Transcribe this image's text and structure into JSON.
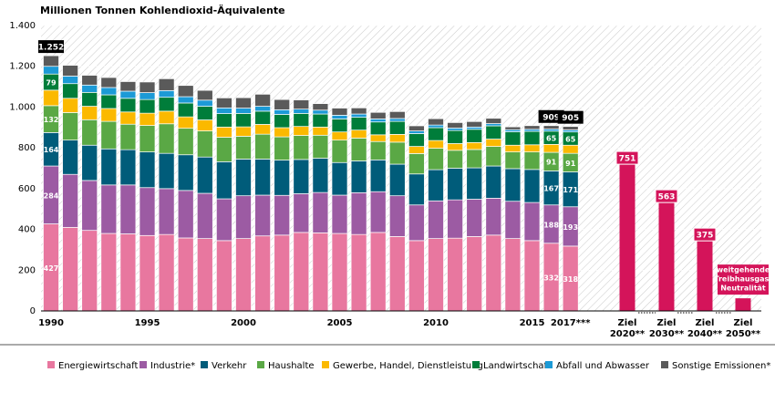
{
  "chart_data": {
    "type": "stacked-bar",
    "title": "Millionen Tonnen Kohlendioxid-Äquivalente",
    "ylim": [
      0,
      1400
    ],
    "yticks": [
      0,
      200,
      400,
      600,
      800,
      {
        "value": 1000,
        "label": "1.000"
      },
      {
        "value": 1200,
        "label": "1.200"
      },
      {
        "value": 1400,
        "label": "1.400"
      }
    ],
    "categories": [
      "1990",
      null,
      null,
      null,
      null,
      "1995",
      null,
      null,
      null,
      null,
      "2000",
      null,
      null,
      null,
      null,
      "2005",
      null,
      null,
      null,
      null,
      "2010",
      null,
      null,
      null,
      null,
      "2015",
      null,
      "2017***"
    ],
    "data_labels": [
      0,
      26,
      27
    ],
    "series": [
      {
        "name": "Energiewirtschaft",
        "color": "#e8779f",
        "labels": true,
        "values": [
          427,
          410,
          395,
          380,
          378,
          370,
          375,
          358,
          355,
          345,
          355,
          368,
          372,
          385,
          383,
          380,
          375,
          385,
          365,
          345,
          355,
          357,
          365,
          372,
          355,
          345,
          332,
          318
        ]
      },
      {
        "name": "Industrie*",
        "color": "#9c5ba3",
        "labels": true,
        "values": [
          284,
          260,
          245,
          238,
          240,
          235,
          225,
          233,
          222,
          205,
          210,
          200,
          195,
          190,
          198,
          188,
          205,
          200,
          200,
          175,
          185,
          188,
          183,
          181,
          183,
          187,
          188,
          193
        ]
      },
      {
        "name": "Verkehr",
        "color": "#005c7a",
        "labels": true,
        "values": [
          164,
          168,
          173,
          177,
          173,
          175,
          173,
          175,
          178,
          182,
          180,
          177,
          173,
          168,
          168,
          160,
          156,
          156,
          155,
          152,
          153,
          155,
          154,
          158,
          160,
          162,
          167,
          171
        ]
      },
      {
        "name": "Haushalte",
        "color": "#5aa845",
        "labels": true,
        "values": [
          132,
          135,
          125,
          135,
          125,
          130,
          145,
          130,
          128,
          120,
          112,
          122,
          114,
          118,
          113,
          110,
          112,
          90,
          108,
          100,
          105,
          88,
          90,
          96,
          82,
          86,
          91,
          91
        ]
      },
      {
        "name": "Gewerbe, Handel, Dienstleistung",
        "color": "#fbb900",
        "labels": false,
        "values": [
          76,
          70,
          66,
          63,
          60,
          60,
          62,
          56,
          54,
          50,
          46,
          48,
          45,
          44,
          40,
          40,
          39,
          33,
          38,
          35,
          38,
          33,
          34,
          36,
          33,
          35,
          39,
          40
        ]
      },
      {
        "name": "Landwirtschaft",
        "color": "#007d3a",
        "labels": true,
        "values": [
          79,
          72,
          68,
          67,
          67,
          67,
          68,
          68,
          67,
          66,
          66,
          65,
          65,
          64,
          64,
          64,
          63,
          63,
          64,
          63,
          63,
          64,
          65,
          65,
          66,
          66,
          65,
          65
        ]
      },
      {
        "name": "Abfall und Abwasser",
        "color": "#1c9ad6",
        "labels": false,
        "values": [
          38,
          37,
          36,
          36,
          35,
          34,
          33,
          31,
          30,
          28,
          26,
          24,
          23,
          21,
          19,
          18,
          16,
          15,
          14,
          13,
          13,
          12,
          11,
          11,
          10,
          10,
          10,
          10
        ]
      },
      {
        "name": "Sonstige Emissionen*",
        "color": "#5a5a5a",
        "labels": false,
        "values": [
          52,
          53,
          48,
          49,
          47,
          52,
          58,
          55,
          48,
          49,
          51,
          59,
          50,
          45,
          32,
          35,
          30,
          32,
          34,
          25,
          31,
          27,
          27,
          26,
          14,
          18,
          17,
          17
        ]
      }
    ],
    "totals": {
      "values": [
        1252,
        null,
        null,
        null,
        null,
        null,
        null,
        null,
        null,
        null,
        null,
        null,
        null,
        null,
        null,
        null,
        null,
        null,
        null,
        null,
        null,
        null,
        null,
        null,
        null,
        null,
        909,
        905
      ],
      "value_labels": [
        "1.252",
        null,
        null,
        null,
        null,
        null,
        null,
        null,
        null,
        null,
        null,
        null,
        null,
        null,
        null,
        null,
        null,
        null,
        null,
        null,
        null,
        null,
        null,
        null,
        null,
        null,
        null,
        null
      ]
    },
    "targets": {
      "color": "#d4145a",
      "categories": [
        [
          "Ziel",
          "2020**"
        ],
        [
          "Ziel",
          "2030**"
        ],
        [
          "Ziel",
          "2040**"
        ],
        [
          "Ziel",
          "2050**"
        ]
      ],
      "values": [
        751,
        563,
        375,
        62
      ],
      "annotation": [
        "weitgehende",
        "Treibhausgas-",
        "Neutralität"
      ]
    }
  }
}
